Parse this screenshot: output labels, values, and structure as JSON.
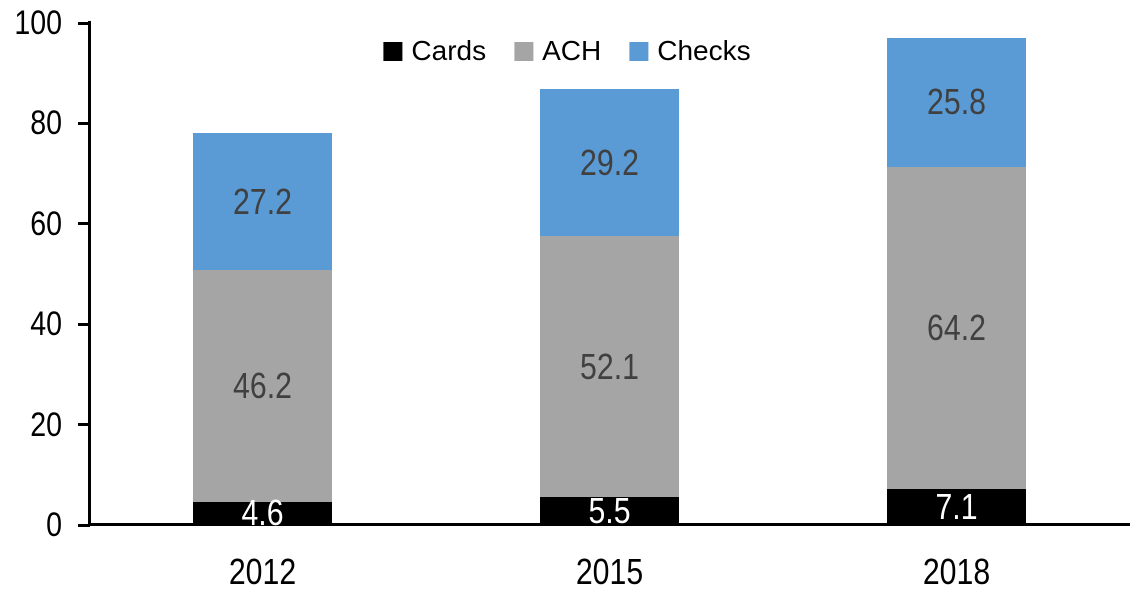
{
  "chart_data": {
    "type": "bar",
    "stacked": true,
    "categories": [
      "2012",
      "2015",
      "2018"
    ],
    "series": [
      {
        "name": "Cards",
        "values": [
          4.6,
          5.5,
          7.1
        ],
        "color": "#000000",
        "label_color": "#FFFFFF"
      },
      {
        "name": "ACH",
        "values": [
          46.2,
          52.1,
          64.2
        ],
        "color": "#A5A5A5",
        "label_color": "#404040"
      },
      {
        "name": "Checks",
        "values": [
          27.2,
          29.2,
          25.8
        ],
        "color": "#5B9BD5",
        "label_color": "#404040"
      }
    ],
    "totals": [
      78.0,
      86.8,
      97.1
    ],
    "ylim": [
      0,
      100
    ],
    "ytick_step": 20,
    "ytick_labels": [
      "0",
      "20",
      "40",
      "60",
      "80",
      "100"
    ],
    "grid": false,
    "data_labels": true,
    "legend_position": "top-center",
    "legend_order": [
      "Cards",
      "ACH",
      "Checks"
    ],
    "axis_color": "#000000",
    "background_color": "#FFFFFF"
  }
}
